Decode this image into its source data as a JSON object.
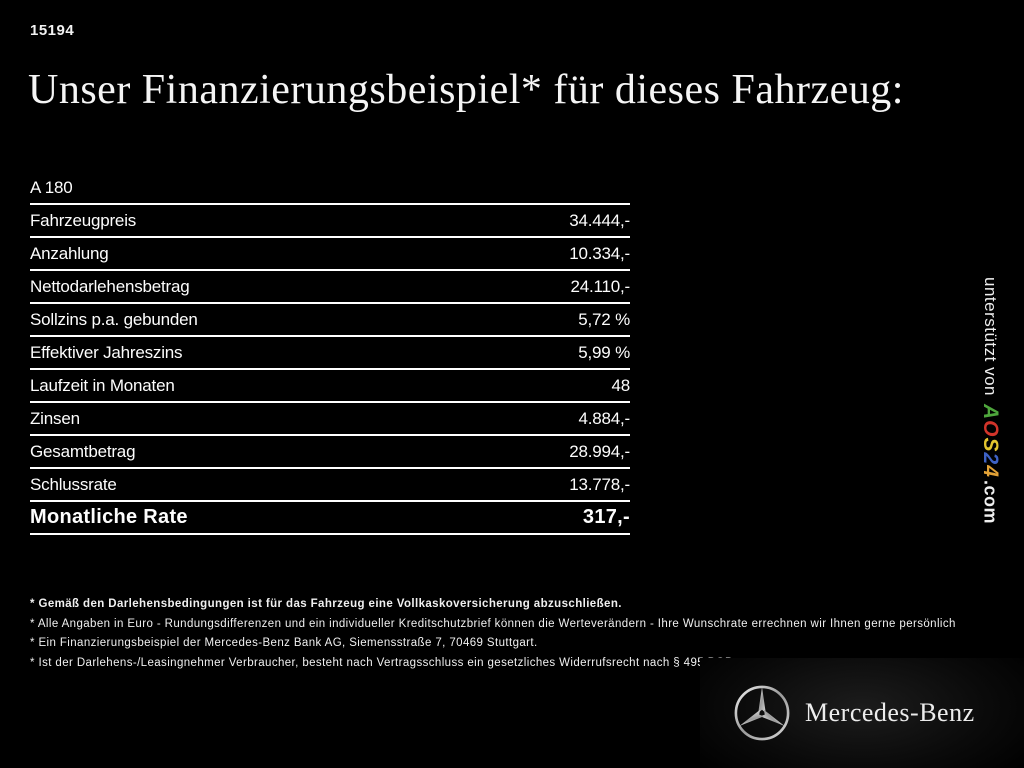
{
  "page": {
    "id_number": "15194",
    "title": "Unser Finanzierungsbeispiel* für dieses Fahrzeug:"
  },
  "finance_table": {
    "model": "A 180",
    "rows": [
      {
        "label": "Fahrzeugpreis",
        "value": "34.444,-"
      },
      {
        "label": "Anzahlung",
        "value": "10.334,-"
      },
      {
        "label": "Nettodarlehensbetrag",
        "value": "24.110,-"
      },
      {
        "label": "Sollzins p.a. gebunden",
        "value": "5,72 %"
      },
      {
        "label": "Effektiver Jahreszins",
        "value": "5,99 %"
      },
      {
        "label": "Laufzeit in Monaten",
        "value": "48"
      },
      {
        "label": "Zinsen",
        "value": "4.884,-"
      },
      {
        "label": "Gesamtbetrag",
        "value": "28.994,-"
      },
      {
        "label": "Schlussrate",
        "value": "13.778,-"
      }
    ],
    "highlight_row": {
      "label": "Monatliche Rate",
      "value": "317,-"
    }
  },
  "supporter": {
    "prefix": "unterstützt von",
    "brand_letters": [
      {
        "char": "A",
        "color": "#4ea63c"
      },
      {
        "char": "O",
        "color": "#d2342a"
      },
      {
        "char": "S",
        "color": "#e3c52f"
      },
      {
        "char": "2",
        "color": "#3e62c4"
      },
      {
        "char": "4",
        "color": "#e2a237"
      }
    ],
    "suffix": ".com"
  },
  "footnotes": [
    {
      "text": "* Gemäß den Darlehensbedingungen ist für das Fahrzeug eine Vollkaskoversicherung abzuschließen.",
      "bold": true
    },
    {
      "text": "* Alle Angaben in Euro - Rundungsdifferenzen und ein individueller Kreditschutzbrief können die Werteverändern - Ihre Wunschrate errechnen wir Ihnen gerne persönlich",
      "bold": false
    },
    {
      "text": "* Ein Finanzierungsbeispiel der Mercedes-Benz Bank AG, Siemensstraße 7, 70469 Stuttgart.",
      "bold": false
    },
    {
      "text": "* Ist der Darlehens-/Leasingnehmer Verbraucher, besteht nach Vertragsschluss ein gesetzliches Widerrufsrecht nach § 495 BGB.",
      "bold": false
    }
  ],
  "brand": {
    "name": "Mercedes-Benz"
  }
}
